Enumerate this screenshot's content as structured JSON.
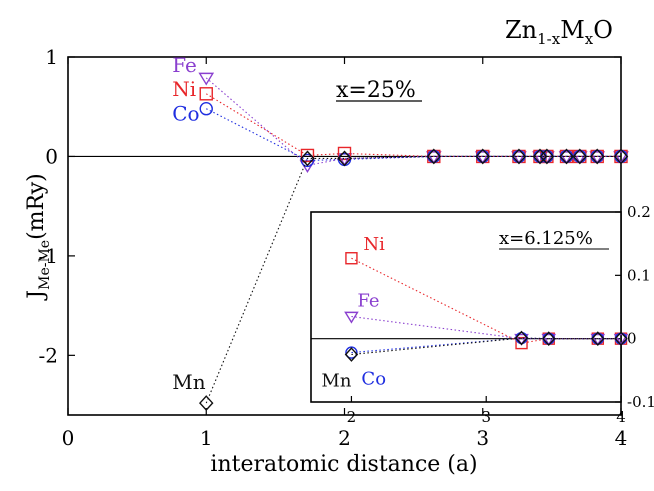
{
  "chart_data": [
    {
      "type": "scatter",
      "title": "Zn1-xMxO",
      "title_parts": {
        "base1": "Zn",
        "sub1": "1-x",
        "base2": "M",
        "sub2": "x",
        "base3": "O"
      },
      "annotation": "x=25%",
      "xlabel": "interatomic distance (a)",
      "ylabel": "J",
      "ylabel_sub": "Me-Me",
      "ylabel_unit": "(mRy)",
      "xlim": [
        0,
        4
      ],
      "ylim": [
        -2.6,
        1.0
      ],
      "x_ticks": [
        0,
        1,
        2,
        3,
        4
      ],
      "y_ticks": [
        -2,
        -1,
        0,
        1
      ],
      "x_tick_labels": [
        "0",
        "1",
        "2",
        "3",
        "4"
      ],
      "y_tick_labels": [
        "-2",
        "-1",
        "0",
        "1"
      ],
      "zero_line": true,
      "series": [
        {
          "name": "Fe",
          "color": "#8a3fcf",
          "marker": "triangle-down",
          "x": [
            1.0,
            1.732,
            2.0,
            2.646,
            3.0,
            3.262,
            3.414,
            3.464,
            3.606,
            3.702,
            3.828,
            4.0
          ],
          "y": [
            0.79,
            -0.09,
            -0.02,
            0.0,
            0.0,
            0.0,
            0.0,
            0.0,
            0.0,
            0.0,
            0.0,
            0.0
          ]
        },
        {
          "name": "Ni",
          "color": "#e8262a",
          "marker": "square",
          "x": [
            1.0,
            1.732,
            2.0,
            2.646,
            3.0,
            3.262,
            3.414,
            3.464,
            3.606,
            3.702,
            3.828,
            4.0
          ],
          "y": [
            0.63,
            0.01,
            0.03,
            0.0,
            0.0,
            0.0,
            0.0,
            0.0,
            0.0,
            0.0,
            0.0,
            0.0
          ]
        },
        {
          "name": "Co",
          "color": "#1f2ee0",
          "marker": "circle",
          "x": [
            1.0,
            1.732,
            2.0,
            2.646,
            3.0,
            3.262,
            3.414,
            3.464,
            3.606,
            3.702,
            3.828,
            4.0
          ],
          "y": [
            0.48,
            -0.04,
            -0.03,
            0.0,
            0.0,
            0.0,
            0.0,
            0.0,
            0.0,
            0.0,
            0.0,
            0.0
          ]
        },
        {
          "name": "Mn",
          "color": "#111111",
          "marker": "diamond",
          "x": [
            1.0,
            1.732,
            2.0,
            2.646,
            3.0,
            3.262,
            3.414,
            3.464,
            3.606,
            3.702,
            3.828,
            4.0
          ],
          "y": [
            -2.48,
            -0.02,
            -0.02,
            0.0,
            0.0,
            0.0,
            0.0,
            0.0,
            0.0,
            0.0,
            0.0,
            0.0
          ]
        }
      ]
    },
    {
      "type": "scatter",
      "annotation": "x=6.125%",
      "xlim": [
        1.7,
        4.0
      ],
      "ylim": [
        -0.1,
        0.2
      ],
      "x_ticks": [
        2,
        3,
        4
      ],
      "y_ticks": [
        -0.1,
        0,
        0.1,
        0.2
      ],
      "x_tick_labels": [
        "2",
        "3",
        "4"
      ],
      "y_tick_labels": [
        "-0.1",
        "0",
        "0.1",
        "0.2"
      ],
      "zero_line": true,
      "series": [
        {
          "name": "Ni",
          "color": "#e8262a",
          "marker": "square",
          "x": [
            2.0,
            3.262,
            3.464,
            3.828,
            4.0
          ],
          "y": [
            0.127,
            -0.007,
            0.0,
            0.0,
            0.0
          ]
        },
        {
          "name": "Fe",
          "color": "#8a3fcf",
          "marker": "triangle-down",
          "x": [
            2.0,
            3.262,
            3.464,
            3.828,
            4.0
          ],
          "y": [
            0.035,
            0.0,
            0.0,
            0.0,
            0.0
          ]
        },
        {
          "name": "Co",
          "color": "#1f2ee0",
          "marker": "circle",
          "x": [
            2.0,
            3.262,
            3.464,
            3.828,
            4.0
          ],
          "y": [
            -0.022,
            0.001,
            0.0,
            0.0,
            0.0
          ]
        },
        {
          "name": "Mn",
          "color": "#111111",
          "marker": "diamond",
          "x": [
            2.0,
            3.262,
            3.464,
            3.828,
            4.0
          ],
          "y": [
            -0.025,
            0.001,
            0.0,
            0.0,
            0.0
          ]
        }
      ]
    }
  ]
}
